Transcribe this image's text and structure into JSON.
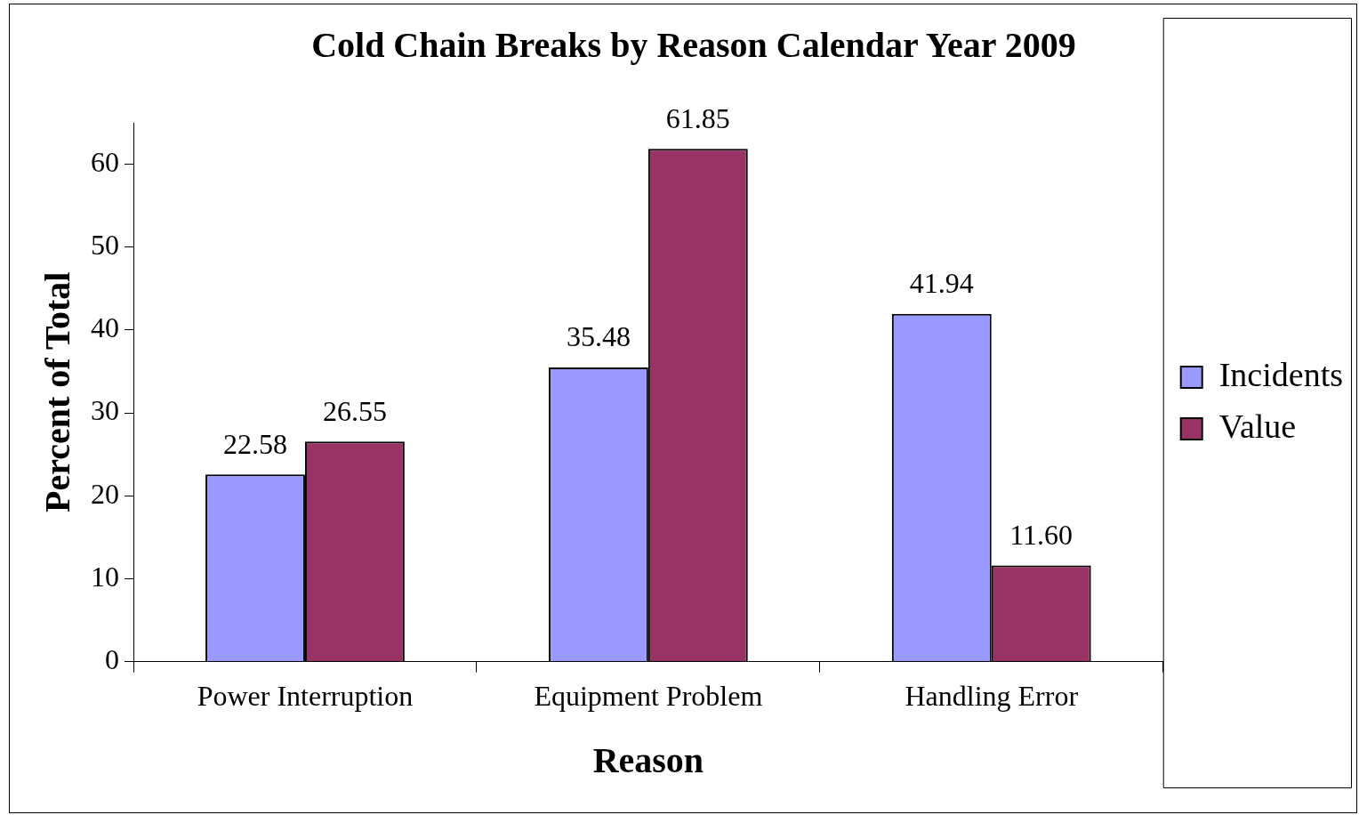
{
  "chart_data": {
    "type": "bar",
    "title": "Cold Chain Breaks by Reason Calendar Year 2009",
    "xlabel": "Reason",
    "ylabel": "Percent of Total",
    "categories": [
      "Power Interruption",
      "Equipment Problem",
      "Handling Error"
    ],
    "series": [
      {
        "name": "Incidents",
        "color": "#9999ff",
        "values": [
          22.58,
          35.48,
          41.94
        ],
        "value_labels": [
          "22.58",
          "35.48",
          "41.94"
        ]
      },
      {
        "name": "Value",
        "color": "#993366",
        "values": [
          26.55,
          61.85,
          11.6
        ],
        "value_labels": [
          "26.55",
          "61.85",
          "11.60"
        ]
      }
    ],
    "ylim": [
      0,
      65
    ],
    "yticks": [
      0,
      10,
      20,
      30,
      40,
      50,
      60
    ],
    "grid": false,
    "legend": "right"
  }
}
